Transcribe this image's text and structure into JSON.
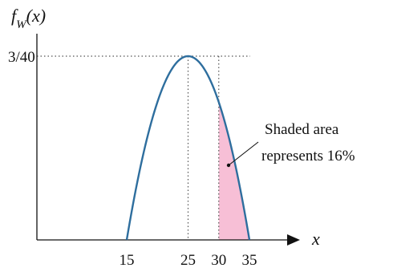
{
  "chart_data": {
    "type": "area",
    "ylabel": "f_W(x)",
    "xlabel": "x",
    "x_ticks": [
      "15",
      "25",
      "30",
      "35"
    ],
    "y_ticks": [
      "3/40"
    ],
    "ylim": [
      0,
      0.075
    ],
    "xlim": [
      15,
      35
    ],
    "series": [
      {
        "curve": "quadratic",
        "x": [
          15,
          20,
          25,
          30,
          35
        ],
        "y": [
          0,
          0.0562,
          0.075,
          0.0562,
          0
        ]
      }
    ],
    "shaded_region": {
      "x_from": 30,
      "x_to": 35
    },
    "reference_lines": [
      {
        "x": 25
      },
      {
        "x": 30
      },
      {
        "y": 0.075
      }
    ],
    "annotation": {
      "lines": [
        "Shaded area",
        "represents 16%"
      ]
    },
    "grid": false,
    "colors": {
      "curve": "#2e6e9e",
      "shade": "#f7bfd6",
      "axis": "#111111",
      "guide": "#555555"
    }
  }
}
